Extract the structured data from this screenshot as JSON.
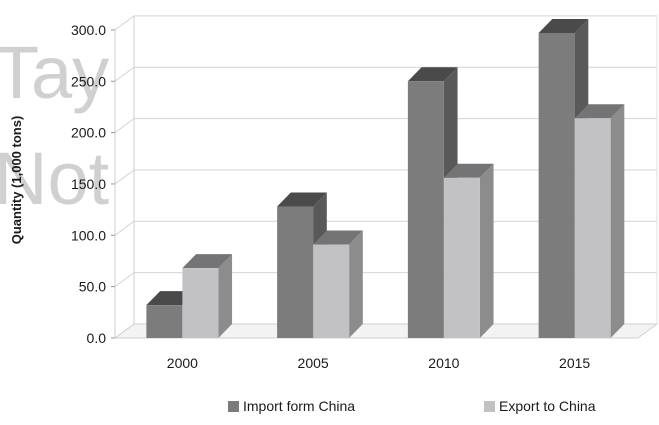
{
  "chart_data": {
    "type": "bar",
    "categories": [
      "2000",
      "2005",
      "2010",
      "2015"
    ],
    "series": [
      {
        "name": "Import form China",
        "values": [
          32,
          128,
          250,
          297
        ],
        "color": "#7c7c7c"
      },
      {
        "name": "Export to China",
        "values": [
          68,
          91,
          156,
          214
        ],
        "color": "#c2c2c4"
      }
    ],
    "ylabel": "Quantity (1,000 tons)",
    "ylim": [
      0,
      300
    ],
    "yticks": [
      "0.0",
      "50.0",
      "100.0",
      "150.0",
      "200.0",
      "250.0",
      "300.0"
    ],
    "grid": true,
    "style_3d": true,
    "legend": "bottom"
  },
  "watermark": {
    "lines": [
      "Tay",
      "Not"
    ]
  }
}
